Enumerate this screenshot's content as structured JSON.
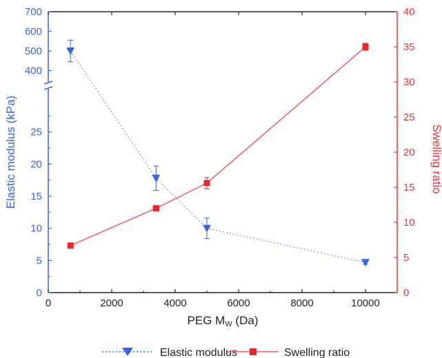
{
  "chart_data": {
    "type": "line",
    "xlabel": "PEG M",
    "xlabel_sub": "W",
    "xlabel_unit": " (Da)",
    "ylabel_left": "Elastic modulus (kPa)",
    "ylabel_right": "Swelling ratio",
    "xlim": [
      0,
      11000
    ],
    "x_ticks": [
      0,
      2000,
      4000,
      6000,
      8000,
      10000
    ],
    "y_left_scale": "broken",
    "y_left_lower_range": [
      0,
      30
    ],
    "y_left_lower_ticks": [
      0,
      5,
      10,
      15,
      20,
      25
    ],
    "y_left_upper_range": [
      300,
      700
    ],
    "y_left_upper_ticks": [
      400,
      500,
      600,
      700
    ],
    "ylim_right": [
      0,
      40
    ],
    "y_right_ticks": [
      0,
      5,
      10,
      15,
      20,
      25,
      30,
      35,
      40
    ],
    "grid": false,
    "legend_position": "bottom",
    "series": [
      {
        "name": "Elastic modulus",
        "axis": "left",
        "color": "#3b63e0",
        "line_style": "dotted",
        "marker": "triangle-down",
        "x": [
          700,
          3400,
          5000,
          10000
        ],
        "values": [
          500,
          17.8,
          10.0,
          4.7
        ],
        "error": [
          55,
          1.9,
          1.6,
          0.3
        ]
      },
      {
        "name": "Swelling ratio",
        "axis": "right",
        "color": "#f05a5f",
        "line_style": "solid",
        "marker": "square",
        "x": [
          700,
          3400,
          5000,
          10000
        ],
        "values": [
          6.7,
          12.0,
          15.6,
          35.0
        ],
        "error": [
          0.2,
          0.3,
          0.8,
          0.5
        ]
      }
    ]
  }
}
